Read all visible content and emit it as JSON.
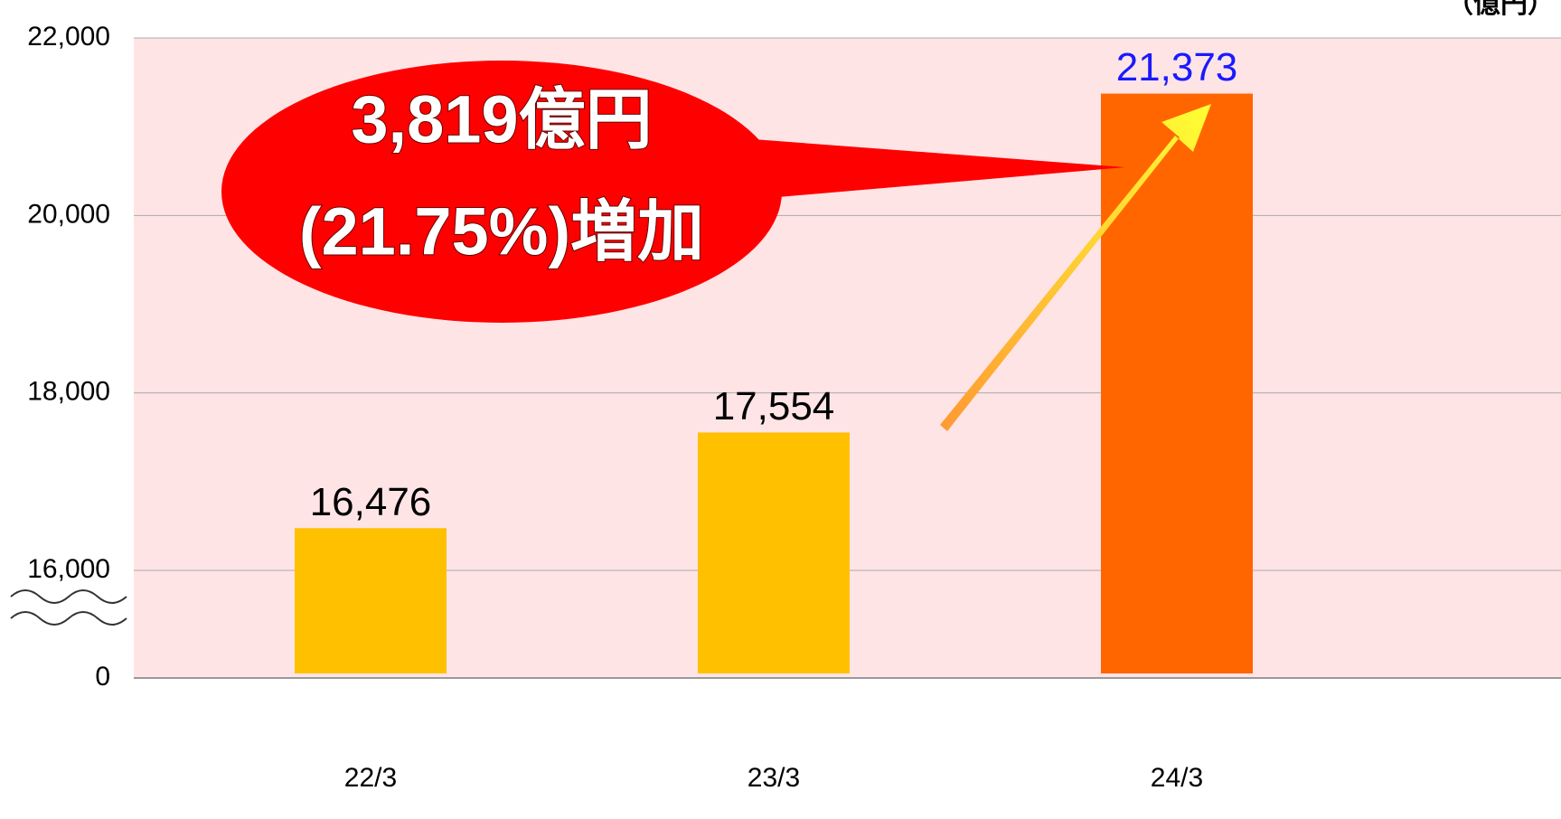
{
  "chart_data": {
    "type": "bar",
    "unit": "（億円）",
    "categories": [
      "22/3",
      "23/3",
      "24/3"
    ],
    "values": [
      16476,
      17554,
      21373
    ],
    "value_labels": [
      "16,476",
      "17,554",
      "21,373"
    ],
    "colors": [
      "#FFC000",
      "#FFC000",
      "#FF6600"
    ],
    "label_colors": [
      "#000000",
      "#000000",
      "#1a1aff"
    ],
    "ylim": [
      0,
      22000
    ],
    "axis_break": [
      0,
      16000
    ],
    "yticks": [
      0,
      {
        "value": 16000,
        "label": "16,000"
      },
      {
        "value": 18000,
        "label": "18,000"
      },
      {
        "value": 20000,
        "label": "20,000"
      },
      {
        "value": 22000,
        "label": "22,000"
      }
    ],
    "grid": true,
    "annotation": [
      "3,819億円",
      "(21.75%)増加"
    ]
  }
}
